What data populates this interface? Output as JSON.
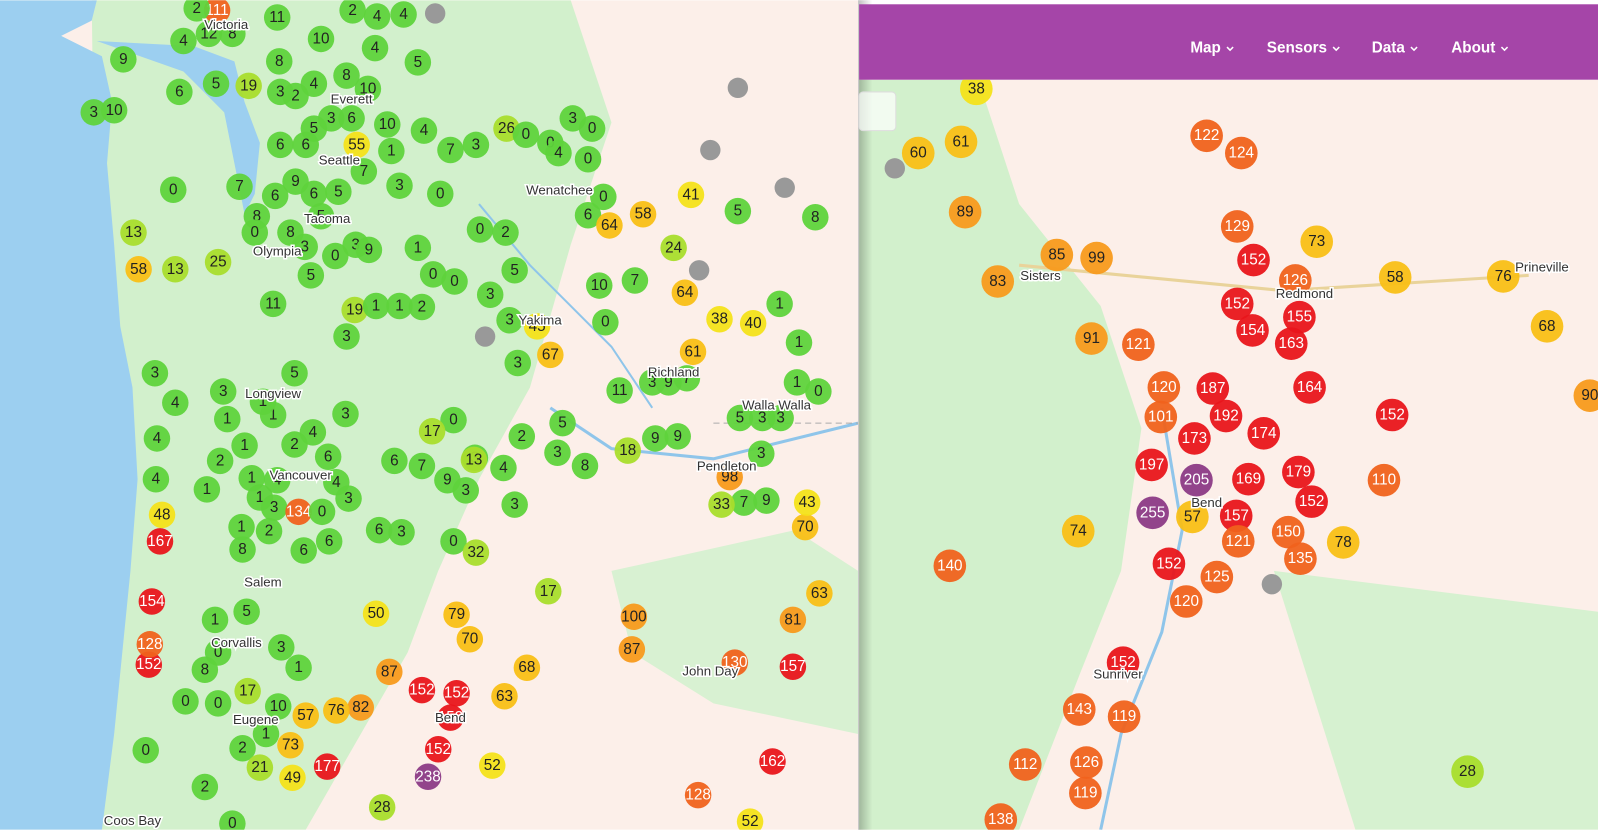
{
  "left_map": {
    "cities": [
      "Victoria",
      "Everett",
      "Seattle",
      "Wenatchee",
      "Tacoma",
      "Olympia",
      "Yakima",
      "Richland",
      "Longview",
      "Walla Walla",
      "Pendleton",
      "Vancouver",
      "Salem",
      "Corvallis",
      "John Day",
      "Eugene",
      "Bend",
      "Coos Bay"
    ],
    "sensors": [
      111,
      11,
      2,
      2,
      4,
      4,
      12,
      4,
      8,
      10,
      4,
      5,
      9,
      3,
      10,
      6,
      5,
      19,
      2,
      4,
      8,
      10,
      8,
      3,
      55,
      10,
      4,
      7,
      3,
      26,
      0,
      6,
      5,
      3,
      6,
      1,
      6,
      9,
      5,
      7,
      3,
      0,
      6,
      7,
      0,
      13,
      58,
      13,
      25,
      6,
      8,
      5,
      0,
      8,
      3,
      0,
      3,
      9,
      5,
      11,
      19,
      1,
      1,
      2,
      3,
      1,
      0,
      0,
      0,
      2,
      5,
      3,
      3,
      45,
      3,
      67,
      0,
      0,
      3,
      0,
      4,
      0,
      0,
      6,
      64,
      58,
      24,
      41,
      5,
      8,
      10,
      7,
      64,
      38,
      40,
      1,
      1,
      61,
      3,
      9,
      7,
      11,
      1,
      0,
      5,
      3,
      3,
      9,
      3,
      18,
      9,
      8,
      3,
      5,
      2,
      4,
      3,
      0,
      17,
      7,
      9,
      3,
      13,
      6,
      3,
      0,
      32,
      17,
      50,
      79,
      70,
      68,
      63,
      100,
      87,
      130,
      157,
      81,
      63,
      70,
      43,
      9,
      7,
      33,
      98,
      162,
      128,
      52,
      87,
      152,
      152,
      152,
      152,
      238,
      177,
      28,
      52,
      49,
      73,
      82,
      76,
      57,
      10,
      1,
      2,
      21,
      0,
      2,
      0,
      0,
      8,
      0,
      1,
      5,
      3,
      1,
      17,
      0,
      152,
      128,
      154,
      167,
      48,
      4,
      4,
      4,
      3,
      3,
      1,
      1,
      2,
      1,
      1,
      2,
      4,
      6,
      4,
      1,
      3,
      134,
      0,
      3,
      2,
      8,
      6,
      6,
      5,
      1,
      3,
      6,
      3,
      1,
      4,
      1
    ]
  },
  "right_map": {
    "nav": [
      "Map",
      "Sensors",
      "Data",
      "About"
    ],
    "cities": [
      "Sisters",
      "Prineville",
      "Redmond",
      "Bend",
      "Sunriver"
    ],
    "sensors": [
      38,
      61,
      60,
      89,
      85,
      99,
      83,
      91,
      121,
      122,
      124,
      129,
      152,
      73,
      126,
      58,
      76,
      68,
      152,
      155,
      154,
      163,
      164,
      152,
      120,
      187,
      101,
      192,
      173,
      174,
      197,
      205,
      169,
      179,
      255,
      57,
      157,
      152,
      110,
      150,
      121,
      78,
      135,
      152,
      125,
      74,
      140,
      120,
      152,
      143,
      119,
      112,
      126,
      119,
      138,
      28,
      90
    ]
  }
}
